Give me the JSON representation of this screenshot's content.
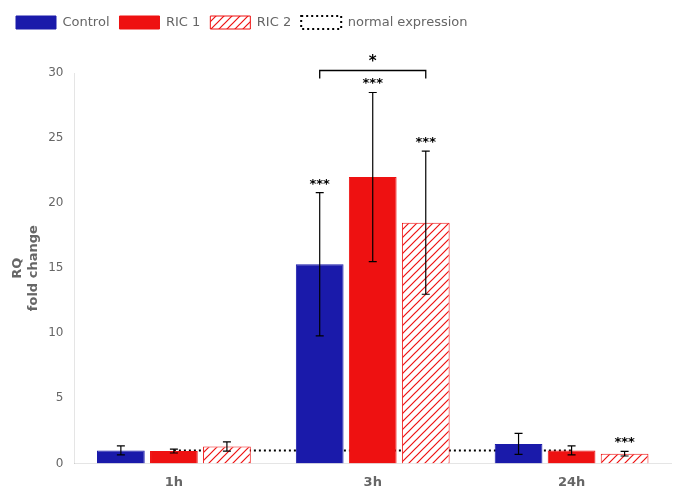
{
  "chart_data": {
    "type": "bar",
    "categories": [
      "1h",
      "3h",
      "24h"
    ],
    "series": [
      {
        "name": "Control",
        "color": "#1a1aaa",
        "values": [
          1.0,
          15.3,
          1.5
        ],
        "errors": [
          0.35,
          5.5,
          0.8
        ]
      },
      {
        "name": "RIC 1",
        "color": "#ee1111",
        "values": [
          0.95,
          22.0,
          1.0
        ],
        "errors": [
          0.15,
          6.5,
          0.35
        ]
      },
      {
        "name": "RIC 2",
        "color": "#ee1111",
        "values": [
          1.3,
          18.5,
          0.75
        ],
        "errors": [
          0.35,
          5.5,
          0.18
        ]
      },
      {
        "name": "normal expression",
        "type": "line",
        "line_style": "dotted",
        "color": "#000000",
        "values": [
          1.0,
          1.0,
          1.0
        ]
      }
    ],
    "ylabel": "RQ\nfold change",
    "ylim": [
      0,
      30
    ],
    "yticks": [
      0,
      5,
      10,
      15,
      20,
      25,
      30
    ],
    "grid": false,
    "legend": "upper left",
    "annotations": [
      {
        "text": "***",
        "series": "Control",
        "category": "3h"
      },
      {
        "text": "***",
        "series": "RIC 1",
        "category": "3h"
      },
      {
        "text": "***",
        "series": "RIC 2",
        "category": "3h"
      },
      {
        "text": "***",
        "series": "RIC 2",
        "category": "24h"
      },
      {
        "text": "*",
        "bracket": [
          "Control",
          "RIC 2"
        ],
        "category": "3h"
      }
    ]
  }
}
